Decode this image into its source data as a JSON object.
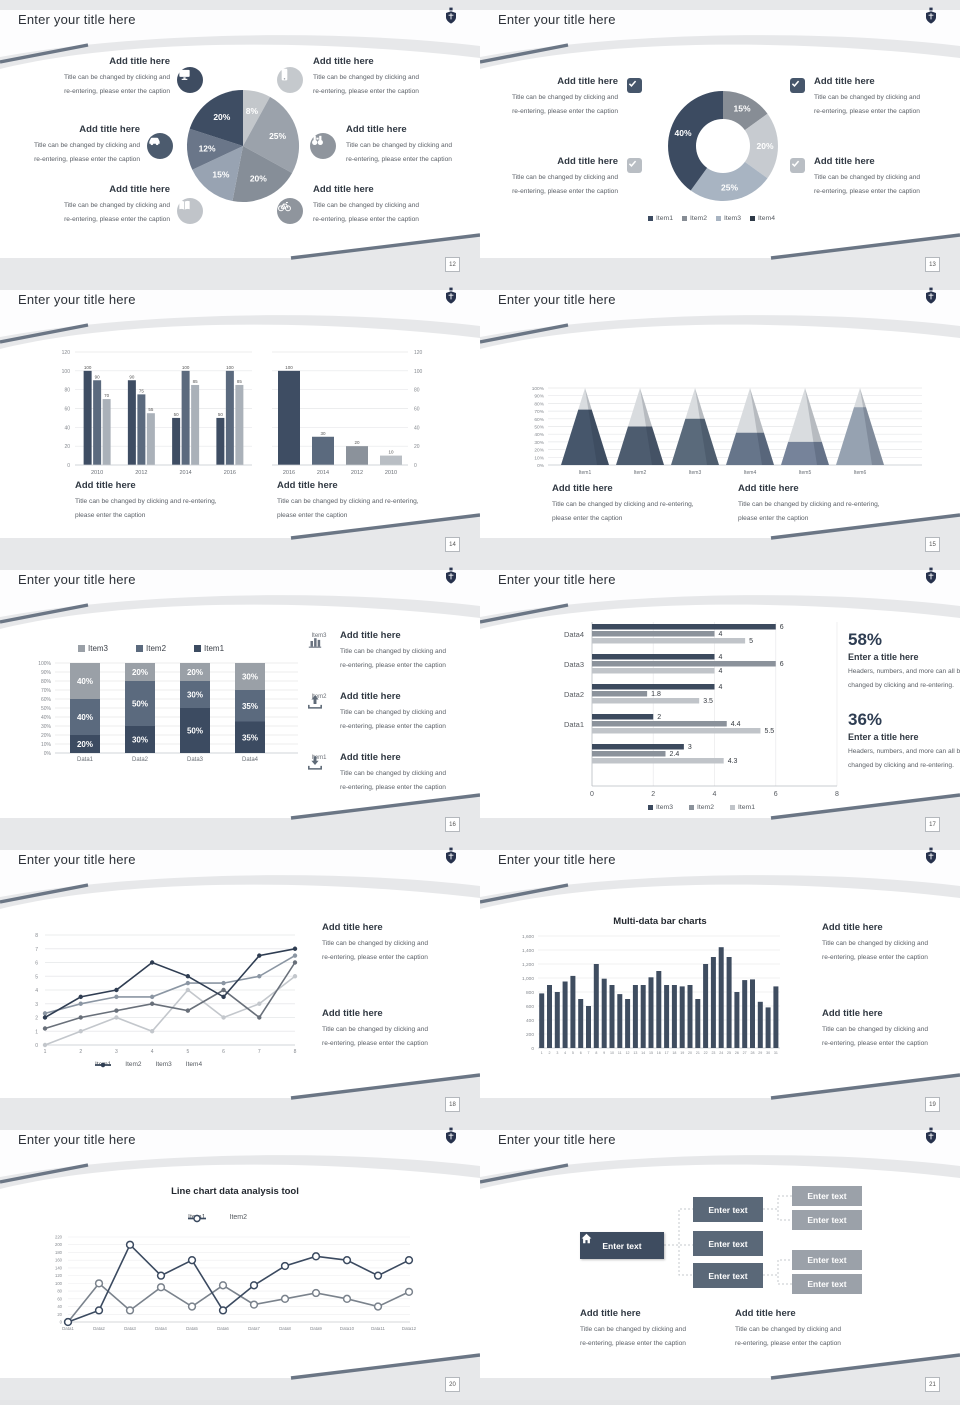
{
  "common": {
    "slide_title": "Enter your title here",
    "add_title": "Add title here",
    "caption_a": "Title can be changed by clicking and",
    "caption_b": "re-entering, please enter the caption",
    "caption_wide_a": "Title can be changed by clicking and re-entering,",
    "caption_wide_b": "please enter the caption",
    "enter_text": "Enter text"
  },
  "palette": {
    "navy": "#3e4d62",
    "slate": "#5b6a7e",
    "midgray": "#8b929b",
    "bluegray": "#a9b4c2",
    "lightgray": "#c6cacf",
    "swoosh": "#6b7685",
    "bg": "#e7e8ea",
    "heading": "#313943",
    "caption": "#5c6168"
  },
  "slides": [
    {
      "page": "12",
      "name": "pie-infographic",
      "chart_data": {
        "type": "pie",
        "labels": [
          "8%",
          "25%",
          "20%",
          "15%",
          "12%",
          "20%"
        ],
        "values": [
          8,
          25,
          20,
          15,
          12,
          20
        ],
        "colors": [
          "#c3c7cb",
          "#9ba2ab",
          "#868e98",
          "#98a3b2",
          "#6a7689",
          "#3e4d63"
        ]
      },
      "icons": [
        {
          "name": "monitor",
          "color": "#3e4c61"
        },
        {
          "name": "smartphone",
          "color": "#c5c9cd"
        },
        {
          "name": "car",
          "color": "#4c5b6e"
        },
        {
          "name": "binoculars",
          "color": "#8f959d"
        },
        {
          "name": "book",
          "color": "#c0c4c9"
        },
        {
          "name": "bicycle",
          "color": "#8f959d"
        }
      ]
    },
    {
      "page": "13",
      "name": "donut-infographic",
      "chart_data": {
        "type": "pie",
        "donut": true,
        "labels": [
          "15%",
          "20%",
          "25%",
          "40%"
        ],
        "values": [
          15,
          20,
          25,
          40
        ],
        "colors": [
          "#878d95",
          "#c7cbd0",
          "#a8b4c2",
          "#3c4b61"
        ],
        "legend": [
          {
            "label": "Item1",
            "color": "#3c4b61"
          },
          {
            "label": "Item2",
            "color": "#878d95"
          },
          {
            "label": "Item3",
            "color": "#a8b4c2"
          },
          {
            "label": "Item4",
            "color": "#2e3947"
          }
        ]
      },
      "checkbox_colors": [
        "#46566b",
        "#46566b",
        "#b9bec4",
        "#b9bec4"
      ]
    },
    {
      "page": "14",
      "name": "column-charts",
      "chart_data": [
        {
          "type": "bar",
          "categories": [
            "2010",
            "2012",
            "2014",
            "2016"
          ],
          "series": [
            {
              "name": "series1",
              "color": "#3e4d63",
              "values": [
                100,
                90,
                50,
                50
              ]
            },
            {
              "name": "series2",
              "color": "#5b6a7e",
              "values": [
                90,
                75,
                100,
                100
              ]
            },
            {
              "name": "series3",
              "color": "#aab1b9",
              "values": [
                70,
                55,
                85,
                85
              ]
            }
          ],
          "ylim": [
            0,
            120
          ],
          "yticks": [
            "0",
            "20",
            "40",
            "60",
            "80",
            "100",
            "120"
          ]
        },
        {
          "type": "bar",
          "categories": [
            "2016",
            "2014",
            "2012",
            "2010"
          ],
          "values": [
            100,
            30,
            20,
            10
          ],
          "colors": [
            "#3e4d63",
            "#5b6a7e",
            "#8b929b",
            "#b9bec4"
          ],
          "ylim": [
            0,
            120
          ],
          "yticks": [
            "0",
            "20",
            "40",
            "60",
            "80",
            "100",
            "120"
          ]
        }
      ]
    },
    {
      "page": "15",
      "name": "pyramid-chart",
      "chart_data": {
        "type": "pyramid",
        "categories": [
          "Item1",
          "Item2",
          "Item3",
          "Item4",
          "Item5",
          "Item6"
        ],
        "values": [
          72,
          50,
          60,
          42,
          30,
          75
        ],
        "colors": [
          "#46566b",
          "#4d5c6f",
          "#5a6a7b",
          "#66758a",
          "#76839a",
          "#96a2b1"
        ],
        "top_color": "#d9dcdf",
        "ylim": [
          0,
          100
        ],
        "yticks": [
          "0%",
          "10%",
          "20%",
          "30%",
          "40%",
          "50%",
          "60%",
          "70%",
          "80%",
          "90%",
          "100%"
        ]
      }
    },
    {
      "page": "16",
      "name": "stacked-bar",
      "chart_data": {
        "type": "stacked-bar",
        "categories": [
          "Data1",
          "Data2",
          "Data3",
          "Data4"
        ],
        "series": [
          {
            "name": "Item1",
            "color": "#3c4b61",
            "values": [
              20,
              30,
              50,
              35
            ]
          },
          {
            "name": "Item2",
            "color": "#5b6a7e",
            "values": [
              40,
              50,
              30,
              35
            ]
          },
          {
            "name": "Item3",
            "color": "#9aa0a7",
            "values": [
              40,
              20,
              20,
              30
            ]
          }
        ],
        "legend": [
          {
            "label": "Item3",
            "color": "#9aa0a7"
          },
          {
            "label": "Item2",
            "color": "#5b6a7e"
          },
          {
            "label": "Item1",
            "color": "#3c4b61"
          }
        ],
        "ylim": [
          0,
          100
        ],
        "yticks": [
          "0%",
          "10%",
          "20%",
          "30%",
          "40%",
          "50%",
          "60%",
          "70%",
          "80%",
          "90%",
          "100%"
        ]
      },
      "side_blocks": [
        {
          "icon": "bar-chart",
          "label": "Item3"
        },
        {
          "icon": "upload",
          "label": "Item2"
        },
        {
          "icon": "download",
          "label": "Item1"
        }
      ]
    },
    {
      "page": "17",
      "name": "horizontal-bar",
      "chart_data": {
        "type": "hbar",
        "groups": [
          {
            "label": "Data4",
            "values": [
              6,
              4,
              5
            ]
          },
          {
            "label": "Data3",
            "values": [
              4,
              6,
              4
            ]
          },
          {
            "label": "Data2",
            "values": [
              4,
              1.8,
              3.5
            ]
          },
          {
            "label": "Data1",
            "values": [
              2,
              4.4,
              5.5
            ]
          },
          {
            "label": "",
            "values": [
              3,
              2.4,
              4.3
            ]
          }
        ],
        "colors": [
          "#3c4a5e",
          "#8b929b",
          "#c0c4c9"
        ],
        "xlim": [
          0,
          8
        ],
        "xticks": [
          "0",
          "2",
          "4",
          "6",
          "8"
        ],
        "legend": [
          {
            "label": "Item3",
            "color": "#3c4a5e"
          },
          {
            "label": "Item2",
            "color": "#8b929b"
          },
          {
            "label": "Item1",
            "color": "#c0c4c9"
          }
        ]
      },
      "stats": [
        {
          "value": "58%",
          "title": "Enter a title here"
        },
        {
          "value": "36%",
          "title": "Enter a title here"
        }
      ],
      "stat_caption_a": "Headers, numbers, and more can all be",
      "stat_caption_b": "changed by clicking and re-entering."
    },
    {
      "page": "18",
      "name": "line-chart",
      "chart_data": {
        "type": "line",
        "x": [
          1,
          2,
          3,
          4,
          5,
          6,
          7,
          8
        ],
        "series": [
          {
            "name": "Item1",
            "color": "#c3c7cc",
            "values": [
              0,
              1,
              2,
              1,
              4,
              2,
              3,
              5
            ]
          },
          {
            "name": "Item2",
            "color": "#69707a",
            "values": [
              1.2,
              2,
              2.5,
              3,
              2.5,
              4,
              2,
              6
            ]
          },
          {
            "name": "Item3",
            "color": "#8b96a3",
            "values": [
              2.3,
              3,
              3.5,
              3.5,
              4.5,
              4.5,
              5,
              6.5
            ]
          },
          {
            "name": "Item4",
            "color": "#2f3d52",
            "values": [
              2,
              3.5,
              4,
              6,
              5,
              3.5,
              6.5,
              7
            ]
          }
        ],
        "ylim": [
          0,
          8
        ],
        "yticks": [
          "0",
          "1",
          "2",
          "3",
          "4",
          "5",
          "6",
          "7",
          "8"
        ]
      }
    },
    {
      "page": "19",
      "name": "multi-bar",
      "chart_data": {
        "type": "bar",
        "title": "Multi-data bar charts",
        "categories": [
          "1",
          "2",
          "3",
          "4",
          "5",
          "6",
          "7",
          "8",
          "9",
          "10",
          "11",
          "12",
          "13",
          "14",
          "15",
          "16",
          "17",
          "18",
          "19",
          "20",
          "21",
          "22",
          "23",
          "24",
          "25",
          "26",
          "27",
          "28",
          "29",
          "30",
          "31"
        ],
        "values": [
          780,
          900,
          800,
          950,
          1030,
          700,
          600,
          1200,
          990,
          900,
          770,
          700,
          900,
          900,
          1010,
          1100,
          900,
          900,
          880,
          900,
          700,
          1200,
          1300,
          1440,
          1300,
          800,
          970,
          980,
          660,
          580,
          880
        ],
        "color": "#3f4d60",
        "ylim": [
          0,
          1600
        ],
        "yticks": [
          "0",
          "200",
          "400",
          "600",
          "800",
          "1,000",
          "1,200",
          "1,400",
          "1,600"
        ]
      }
    },
    {
      "page": "20",
      "name": "line-analysis",
      "chart_data": {
        "type": "line",
        "title": "Line chart data analysis tool",
        "categories": [
          "Data1",
          "Data2",
          "Data3",
          "Data4",
          "Data5",
          "Data6",
          "Data7",
          "Data8",
          "Data9",
          "Data10",
          "Data11",
          "Data12"
        ],
        "series": [
          {
            "name": "Item1",
            "color": "#7a828c",
            "values": [
              0,
              100,
              30,
              90,
              40,
              95,
              45,
              60,
              75,
              60,
              40,
              78
            ]
          },
          {
            "name": "Item2",
            "color": "#3b4a60",
            "values": [
              0,
              30,
              200,
              120,
              160,
              30,
              95,
              145,
              170,
              160,
              120,
              160
            ]
          }
        ],
        "ylim": [
          0,
          220
        ],
        "yticks": [
          "0",
          "20",
          "40",
          "60",
          "80",
          "100",
          "120",
          "140",
          "160",
          "180",
          "200",
          "220"
        ]
      }
    },
    {
      "page": "21",
      "name": "hierarchy-diagram",
      "diagram": {
        "root_color": "#3e4c60",
        "mid_color": "#5a6878",
        "leaf_color": "#9ba1a9",
        "root_count": 1,
        "mid_count": 3,
        "leaf_count": 4
      }
    }
  ]
}
